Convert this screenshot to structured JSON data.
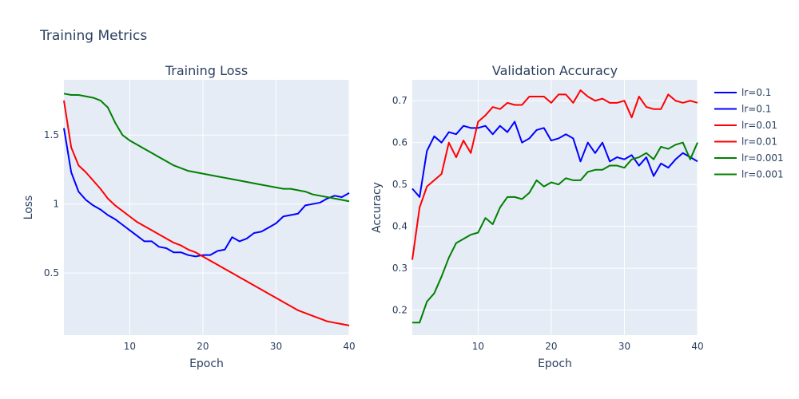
{
  "title": "Training Metrics",
  "colors": {
    "plot_bg": "#e5ecf6",
    "grid": "#ffffff",
    "text": "#2a3f5f"
  },
  "legend": {
    "position": "right",
    "entries": [
      {
        "label": "lr=0.1",
        "color": "#0000ff"
      },
      {
        "label": "lr=0.1",
        "color": "#0000ff"
      },
      {
        "label": "lr=0.01",
        "color": "#ff0000"
      },
      {
        "label": "lr=0.01",
        "color": "#ff0000"
      },
      {
        "label": "lr=0.001",
        "color": "#008000"
      },
      {
        "label": "lr=0.001",
        "color": "#008000"
      }
    ]
  },
  "chart_data": [
    {
      "type": "line",
      "title": "Training Loss",
      "xlabel": "Epoch",
      "ylabel": "Loss",
      "xlim": [
        1,
        40
      ],
      "ylim": [
        0.05,
        1.9
      ],
      "xticks": [
        10,
        20,
        30,
        40
      ],
      "yticks": [
        0.5,
        1,
        1.5
      ],
      "ytick_labels": [
        "0.5",
        "1",
        "1.5"
      ],
      "grid": true,
      "x": [
        1,
        2,
        3,
        4,
        5,
        6,
        7,
        8,
        9,
        10,
        11,
        12,
        13,
        14,
        15,
        16,
        17,
        18,
        19,
        20,
        21,
        22,
        23,
        24,
        25,
        26,
        27,
        28,
        29,
        30,
        31,
        32,
        33,
        34,
        35,
        36,
        37,
        38,
        39,
        40
      ],
      "series": [
        {
          "name": "lr=0.1",
          "color": "#0000ff",
          "values": [
            1.55,
            1.23,
            1.09,
            1.03,
            0.99,
            0.96,
            0.92,
            0.89,
            0.85,
            0.81,
            0.77,
            0.73,
            0.73,
            0.69,
            0.68,
            0.65,
            0.65,
            0.63,
            0.62,
            0.63,
            0.63,
            0.66,
            0.67,
            0.76,
            0.73,
            0.75,
            0.79,
            0.8,
            0.83,
            0.86,
            0.91,
            0.92,
            0.93,
            0.99,
            1.0,
            1.01,
            1.04,
            1.06,
            1.05,
            1.08
          ]
        },
        {
          "name": "lr=0.01",
          "color": "#ff0000",
          "values": [
            1.75,
            1.41,
            1.28,
            1.23,
            1.17,
            1.11,
            1.04,
            0.99,
            0.95,
            0.91,
            0.87,
            0.84,
            0.81,
            0.78,
            0.75,
            0.72,
            0.7,
            0.67,
            0.65,
            0.62,
            0.59,
            0.56,
            0.53,
            0.5,
            0.47,
            0.44,
            0.41,
            0.38,
            0.35,
            0.32,
            0.29,
            0.26,
            0.23,
            0.21,
            0.19,
            0.17,
            0.15,
            0.14,
            0.13,
            0.12
          ]
        },
        {
          "name": "lr=0.001",
          "color": "#008000",
          "values": [
            1.8,
            1.79,
            1.79,
            1.78,
            1.77,
            1.75,
            1.7,
            1.59,
            1.5,
            1.46,
            1.43,
            1.4,
            1.37,
            1.34,
            1.31,
            1.28,
            1.26,
            1.24,
            1.23,
            1.22,
            1.21,
            1.2,
            1.19,
            1.18,
            1.17,
            1.16,
            1.15,
            1.14,
            1.13,
            1.12,
            1.11,
            1.11,
            1.1,
            1.09,
            1.07,
            1.06,
            1.05,
            1.04,
            1.03,
            1.02
          ]
        }
      ]
    },
    {
      "type": "line",
      "title": "Validation Accuracy",
      "xlabel": "Epoch",
      "ylabel": "Accuracy",
      "xlim": [
        1,
        40
      ],
      "ylim": [
        0.14,
        0.75
      ],
      "xticks": [
        10,
        20,
        30,
        40
      ],
      "yticks": [
        0.2,
        0.3,
        0.4,
        0.5,
        0.6,
        0.7
      ],
      "ytick_labels": [
        "0.2",
        "0.3",
        "0.4",
        "0.5",
        "0.6",
        "0.7"
      ],
      "grid": true,
      "x": [
        1,
        2,
        3,
        4,
        5,
        6,
        7,
        8,
        9,
        10,
        11,
        12,
        13,
        14,
        15,
        16,
        17,
        18,
        19,
        20,
        21,
        22,
        23,
        24,
        25,
        26,
        27,
        28,
        29,
        30,
        31,
        32,
        33,
        34,
        35,
        36,
        37,
        38,
        39,
        40
      ],
      "series": [
        {
          "name": "lr=0.1",
          "color": "#0000ff",
          "values": [
            0.49,
            0.47,
            0.58,
            0.615,
            0.6,
            0.625,
            0.62,
            0.64,
            0.635,
            0.635,
            0.64,
            0.62,
            0.64,
            0.625,
            0.65,
            0.6,
            0.61,
            0.63,
            0.635,
            0.605,
            0.61,
            0.62,
            0.61,
            0.555,
            0.6,
            0.575,
            0.6,
            0.555,
            0.565,
            0.56,
            0.57,
            0.545,
            0.565,
            0.52,
            0.55,
            0.54,
            0.56,
            0.575,
            0.565,
            0.555
          ]
        },
        {
          "name": "lr=0.01",
          "color": "#ff0000",
          "values": [
            0.32,
            0.445,
            0.495,
            0.51,
            0.525,
            0.6,
            0.565,
            0.605,
            0.575,
            0.65,
            0.665,
            0.685,
            0.68,
            0.695,
            0.69,
            0.69,
            0.71,
            0.71,
            0.71,
            0.695,
            0.715,
            0.715,
            0.695,
            0.725,
            0.71,
            0.7,
            0.705,
            0.695,
            0.695,
            0.7,
            0.66,
            0.71,
            0.685,
            0.68,
            0.68,
            0.715,
            0.7,
            0.695,
            0.7,
            0.695
          ]
        },
        {
          "name": "lr=0.001",
          "color": "#008000",
          "values": [
            0.17,
            0.17,
            0.22,
            0.24,
            0.28,
            0.325,
            0.36,
            0.37,
            0.38,
            0.385,
            0.42,
            0.405,
            0.445,
            0.47,
            0.47,
            0.465,
            0.48,
            0.51,
            0.495,
            0.505,
            0.5,
            0.515,
            0.51,
            0.51,
            0.53,
            0.535,
            0.535,
            0.545,
            0.545,
            0.54,
            0.56,
            0.565,
            0.575,
            0.56,
            0.59,
            0.585,
            0.595,
            0.6,
            0.56,
            0.6
          ]
        }
      ]
    }
  ]
}
